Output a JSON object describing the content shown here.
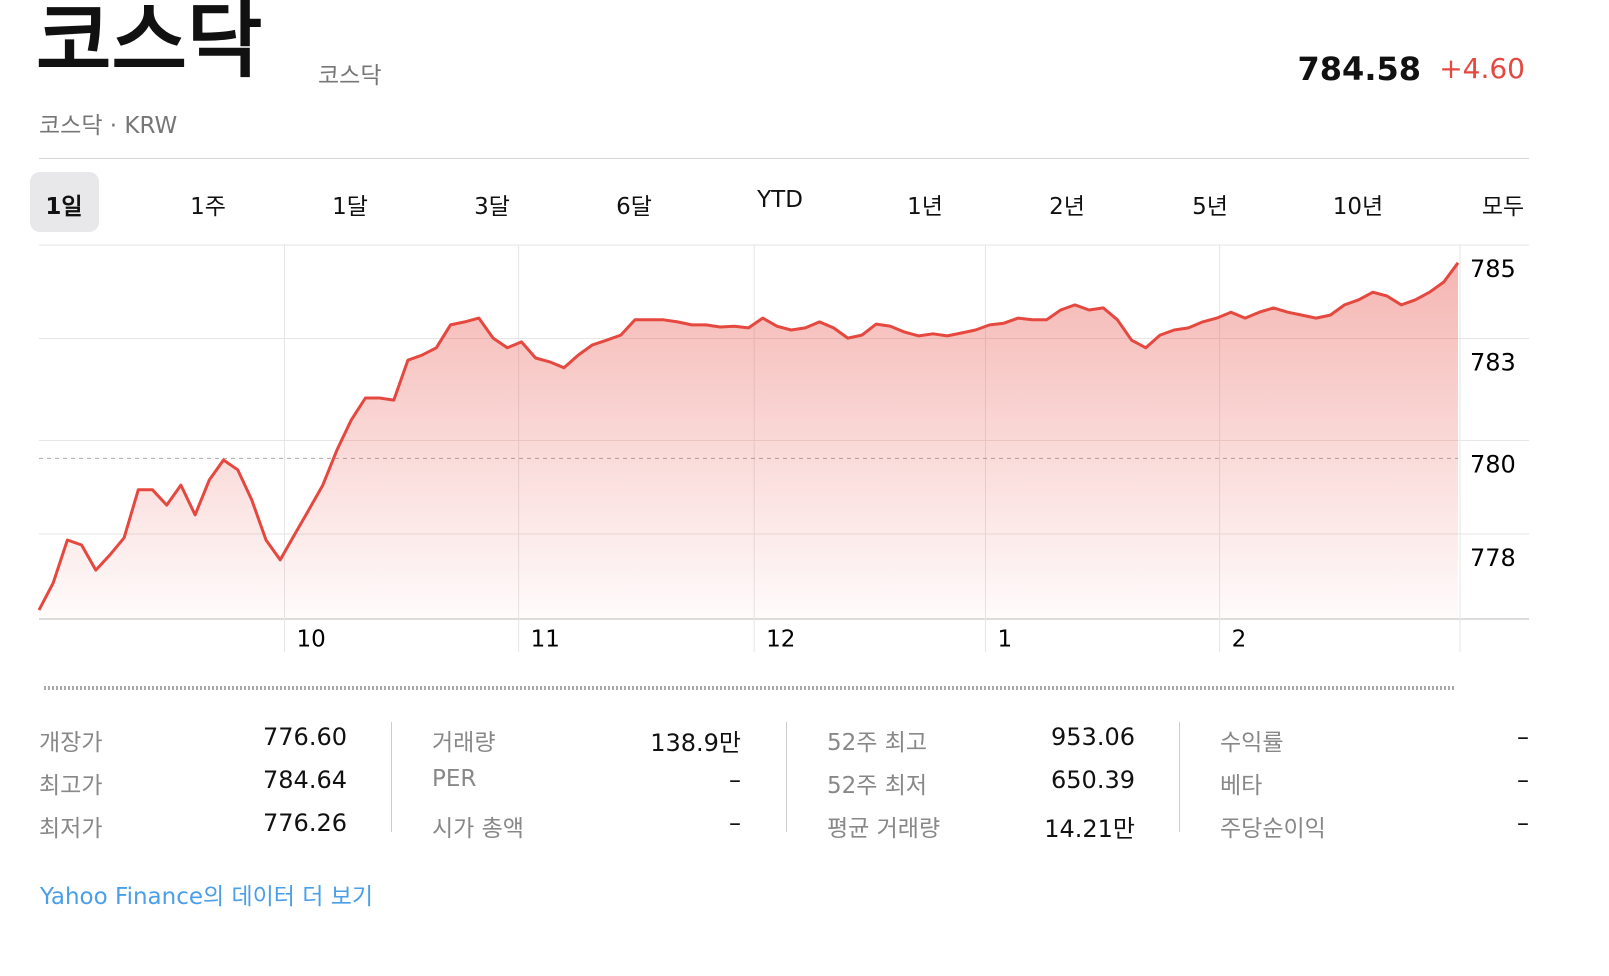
{
  "header": {
    "title": "코스닥",
    "exchange": "코스닥",
    "meta": "코스닥 · KRW",
    "price": "784.58",
    "change": "+4.60"
  },
  "tabs": [
    "1일",
    "1주",
    "1달",
    "3달",
    "6달",
    "YTD",
    "1년",
    "2년",
    "5년",
    "10년",
    "모두"
  ],
  "selected_tab": 0,
  "chart_data": {
    "type": "area",
    "color": "#e5483f",
    "grid": true,
    "xlim": [
      0,
      100
    ],
    "xticks": [
      {
        "value": 17.3,
        "label": "10"
      },
      {
        "value": 33.8,
        "label": "11"
      },
      {
        "value": 50.4,
        "label": "12"
      },
      {
        "value": 66.7,
        "label": "1"
      },
      {
        "value": 83.2,
        "label": "2"
      }
    ],
    "ylim": [
      776.2,
      785.0
    ],
    "yticks": [
      785,
      {
        "value": 782.8,
        "label": "783"
      },
      {
        "value": 780.4,
        "label": "780"
      },
      {
        "value": 778.2,
        "label": "778"
      }
    ],
    "previous_close": 779.98,
    "values": [
      776.41,
      777.05,
      778.06,
      777.94,
      777.35,
      777.71,
      778.11,
      779.24,
      779.24,
      778.88,
      779.35,
      778.65,
      779.47,
      779.94,
      779.71,
      779.0,
      778.06,
      777.59,
      778.18,
      778.76,
      779.35,
      780.18,
      780.88,
      781.4,
      781.4,
      781.35,
      782.29,
      782.41,
      782.58,
      783.12,
      783.19,
      783.28,
      782.81,
      782.58,
      782.72,
      782.34,
      782.25,
      782.11,
      782.41,
      782.65,
      782.76,
      782.88,
      783.24,
      783.24,
      783.24,
      783.19,
      783.12,
      783.12,
      783.07,
      783.09,
      783.05,
      783.28,
      783.09,
      783.0,
      783.05,
      783.19,
      783.05,
      782.81,
      782.88,
      783.14,
      783.09,
      782.95,
      782.86,
      782.91,
      782.86,
      782.93,
      783.0,
      783.12,
      783.16,
      783.28,
      783.24,
      783.24,
      783.47,
      783.59,
      783.47,
      783.52,
      783.24,
      782.76,
      782.58,
      782.88,
      783.0,
      783.05,
      783.19,
      783.28,
      783.42,
      783.28,
      783.42,
      783.52,
      783.42,
      783.35,
      783.28,
      783.35,
      783.59,
      783.71,
      783.89,
      783.8,
      783.59,
      783.71,
      783.89,
      784.13,
      784.58
    ]
  },
  "stats": [
    [
      {
        "label": "개장가",
        "value": "776.60"
      },
      {
        "label": "최고가",
        "value": "784.64"
      },
      {
        "label": "최저가",
        "value": "776.26"
      }
    ],
    [
      {
        "label": "거래량",
        "value": "138.9만"
      },
      {
        "label": "PER",
        "value": "–"
      },
      {
        "label": "시가 총액",
        "value": "–"
      }
    ],
    [
      {
        "label": "52주 최고",
        "value": "953.06"
      },
      {
        "label": "52주 최저",
        "value": "650.39"
      },
      {
        "label": "평균 거래량",
        "value": "14.21만"
      }
    ],
    [
      {
        "label": "수익률",
        "value": "–"
      },
      {
        "label": "베타",
        "value": "–"
      },
      {
        "label": "주당순이익",
        "value": "–"
      }
    ]
  ],
  "link": "Yahoo Finance의 데이터 더 보기"
}
